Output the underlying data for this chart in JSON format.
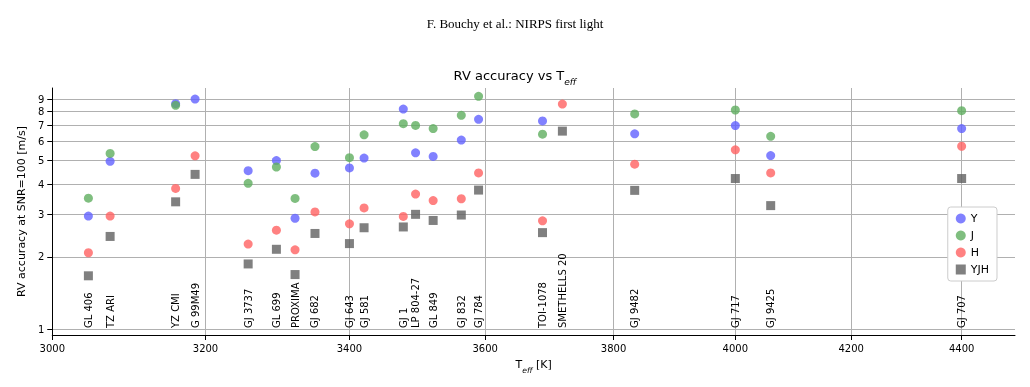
{
  "chart_data": {
    "type": "scatter",
    "title": "F. Bouchy et al.: NIRPS first light",
    "subtitle": "RV accuracy vs T$_{eff}$",
    "xlabel": "T$_{eff}$ [K]",
    "ylabel": "RV accuracy at SNR=100 [m/s]",
    "annotations": [
      "GL 406",
      "TZ ARI",
      "YZ CMI",
      "G 99M49",
      "GJ 3737",
      "GL 699",
      "PROXIMA",
      "GJ 682",
      "GJ 643",
      "GJ 581",
      "GJ 1",
      "LP 804-27",
      "GL 849",
      "GJ 832",
      "GJ 784",
      "TOI-1078",
      "SMETHELLS 20",
      "GJ 9482",
      "GJ 717",
      "GJ 9425",
      "GJ 707"
    ],
    "x": [
      3046,
      3074,
      3160,
      3186,
      3258,
      3297,
      3323,
      3351,
      3400,
      3421,
      3478,
      3496,
      3522,
      3564,
      3590,
      3688,
      3719,
      3834,
      4000,
      4060,
      4400
    ],
    "series": [
      {
        "name": "Y",
        "color": "#6262ff",
        "marker": "circle",
        "values": [
          2.95,
          4.97,
          8.61,
          9.0,
          4.55,
          5.01,
          2.89,
          4.44,
          4.67,
          5.13,
          8.18,
          5.39,
          5.21,
          6.09,
          7.42,
          7.31,
          null,
          6.46,
          6.99,
          5.25,
          6.79
        ]
      },
      {
        "name": "J",
        "color": "#5fae5f",
        "marker": "circle",
        "values": [
          3.5,
          5.36,
          8.48,
          null,
          4.03,
          4.71,
          3.49,
          5.72,
          5.15,
          6.4,
          7.12,
          7.0,
          6.79,
          7.71,
          9.24,
          6.44,
          null,
          7.81,
          8.11,
          6.31,
          8.06
        ]
      },
      {
        "name": "H",
        "color": "#ff6262",
        "marker": "circle",
        "values": [
          2.08,
          2.95,
          3.84,
          5.24,
          2.26,
          2.58,
          2.14,
          3.07,
          2.74,
          3.19,
          2.94,
          3.64,
          3.42,
          3.48,
          4.45,
          2.82,
          8.58,
          4.84,
          5.55,
          4.45,
          5.74
        ]
      },
      {
        "name": "YJH",
        "color": "#606060",
        "marker": "square",
        "values": [
          1.67,
          2.43,
          3.38,
          4.39,
          1.87,
          2.15,
          1.69,
          2.5,
          2.27,
          2.64,
          2.66,
          3.0,
          2.83,
          2.98,
          3.78,
          2.52,
          6.63,
          3.77,
          4.22,
          3.26,
          4.22
        ]
      }
    ],
    "log": "xy",
    "xlim": [
      3000,
      4500
    ],
    "xticks": [
      3000,
      3200,
      3400,
      3600,
      3800,
      4000,
      4200,
      4400
    ],
    "ylim": [
      0.95,
      10
    ],
    "yticks": [
      1,
      2,
      3,
      4,
      5,
      6,
      7,
      8,
      9
    ],
    "grid": true,
    "legend": "bottom right"
  }
}
